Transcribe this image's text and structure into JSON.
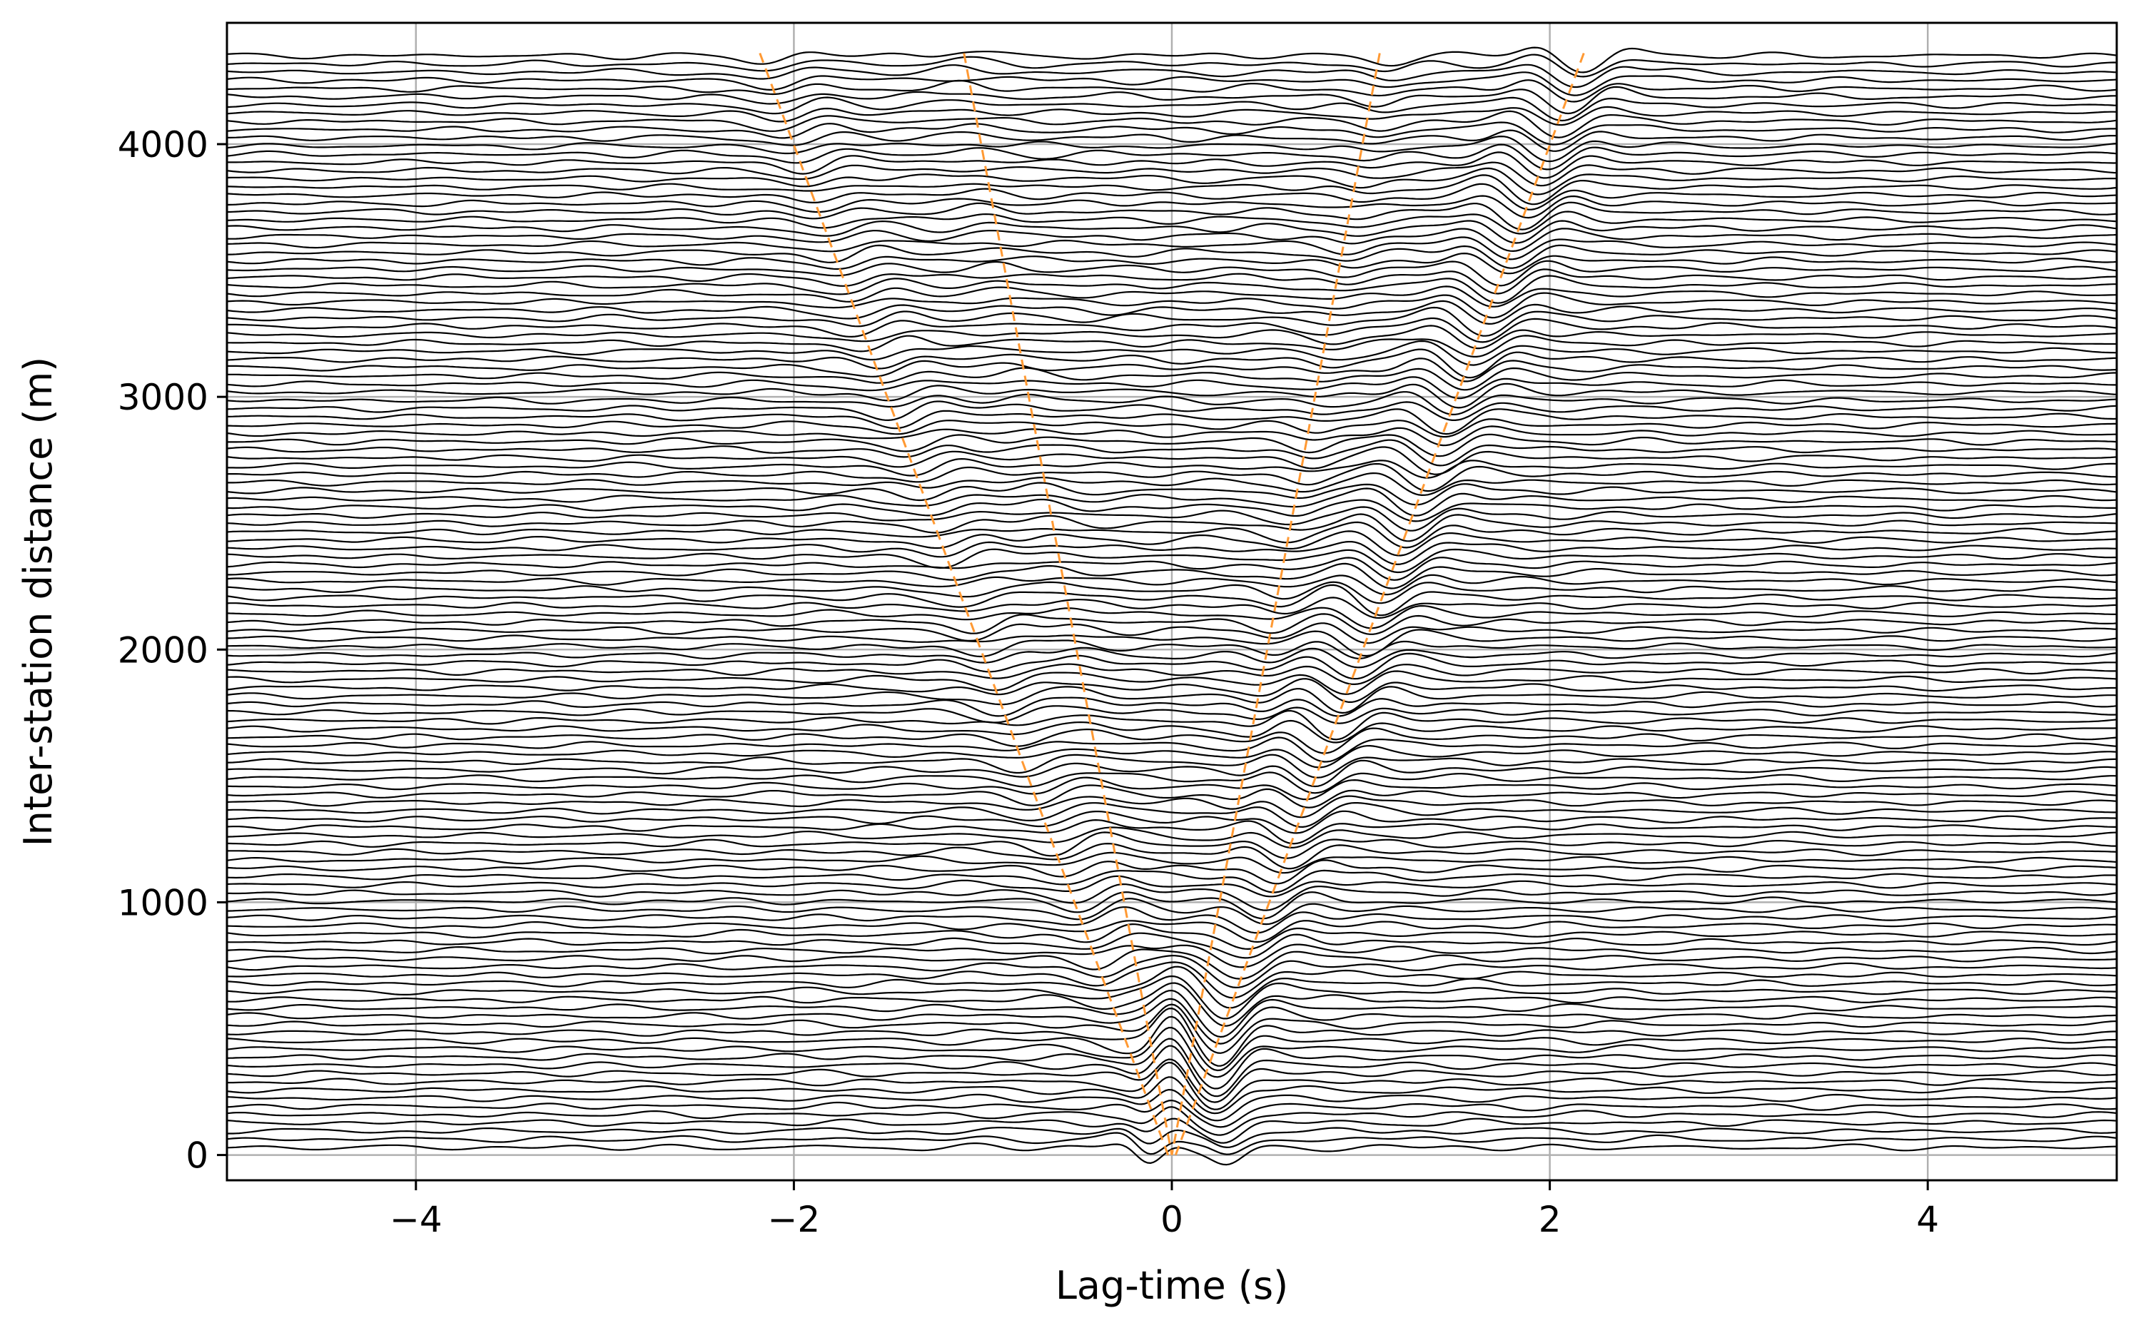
{
  "chart_data": {
    "type": "line",
    "title": "",
    "xlabel": "Lag-time (s)",
    "ylabel": "Inter-station distance (m)",
    "xlim": [
      -5,
      5
    ],
    "ylim": [
      -100,
      4480
    ],
    "xticks": [
      -4,
      -2,
      0,
      2,
      4
    ],
    "yticks": [
      0,
      1000,
      2000,
      3000,
      4000
    ],
    "xtick_labels": [
      "−4",
      "−2",
      "0",
      "2",
      "4"
    ],
    "ytick_labels": [
      "0",
      "1000",
      "2000",
      "3000",
      "4000"
    ],
    "grid": true,
    "legend": "none",
    "trace_color": "#000000",
    "moveout_color": "#ff9933",
    "traces": {
      "count": 134,
      "distance_range_m": [
        30,
        4350
      ],
      "description": "wiggle traces of cross-correlation functions, one per inter-station distance"
    },
    "moveout_lines": [
      {
        "x": [
          -2.18,
          -0.02
        ],
        "y": [
          4360,
          0
        ]
      },
      {
        "x": [
          -1.1,
          0.0
        ],
        "y": [
          4360,
          0
        ]
      },
      {
        "x": [
          1.1,
          0.0
        ],
        "y": [
          4360,
          0
        ]
      },
      {
        "x": [
          2.18,
          0.02
        ],
        "y": [
          4360,
          0
        ]
      }
    ]
  }
}
